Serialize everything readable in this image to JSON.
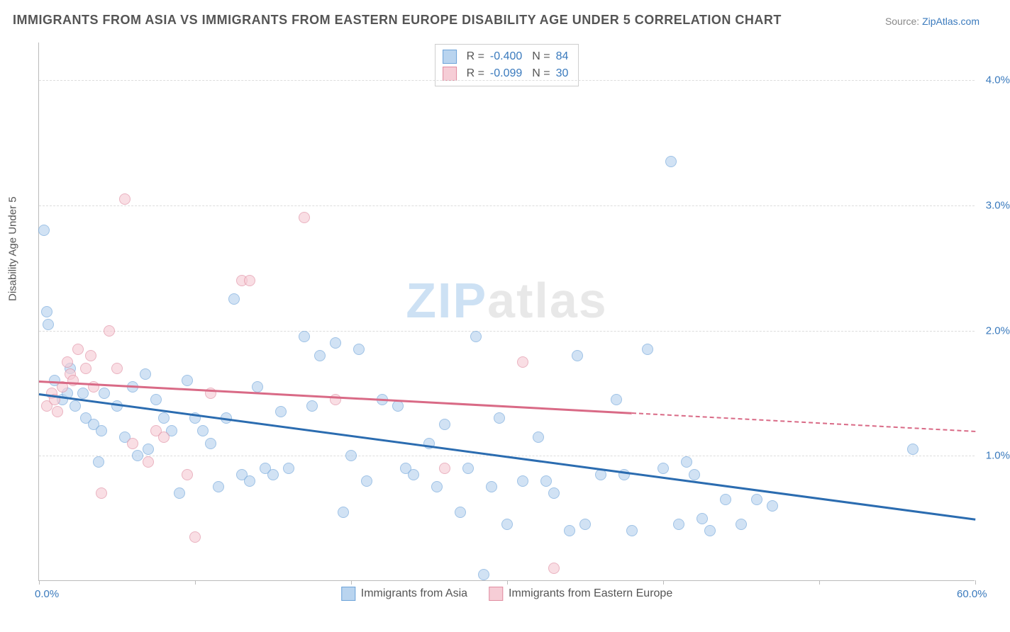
{
  "title": "IMMIGRANTS FROM ASIA VS IMMIGRANTS FROM EASTERN EUROPE DISABILITY AGE UNDER 5 CORRELATION CHART",
  "source_label": "Source:",
  "source_name": "ZipAtlas.com",
  "watermark": {
    "part1": "ZIP",
    "part2": "atlas"
  },
  "chart": {
    "type": "scatter",
    "xlim": [
      0,
      60
    ],
    "ylim": [
      0,
      4.3
    ],
    "y_gridlines": [
      1.0,
      2.0,
      3.0,
      4.0
    ],
    "ytick_labels": [
      "1.0%",
      "2.0%",
      "3.0%",
      "4.0%"
    ],
    "xtick_positions": [
      0,
      10,
      20,
      30,
      40,
      50,
      60
    ],
    "xtick_show_labels": {
      "0": "0.0%",
      "60": "60.0%"
    },
    "ylabel": "Disability Age Under 5",
    "background_color": "#ffffff",
    "grid_color": "#dddddd",
    "axis_color": "#bbbbbb",
    "tick_label_color": "#3a7abd",
    "point_radius": 8,
    "point_opacity": 0.65,
    "series": [
      {
        "key": "asia",
        "label": "Immigrants from Asia",
        "color_fill": "#b9d4ef",
        "color_stroke": "#6da3d9",
        "r_label": "R =",
        "r_value": "-0.400",
        "n_label": "N =",
        "n_value": "84",
        "trend": {
          "x0": 0,
          "y0": 1.5,
          "x1": 60,
          "y1": 0.5,
          "solid_until_x": 60,
          "color": "#2b6cb0"
        },
        "points": [
          [
            0.3,
            2.8
          ],
          [
            0.5,
            2.15
          ],
          [
            0.6,
            2.05
          ],
          [
            1,
            1.6
          ],
          [
            1.5,
            1.45
          ],
          [
            1.8,
            1.5
          ],
          [
            2,
            1.7
          ],
          [
            2.3,
            1.4
          ],
          [
            2.8,
            1.5
          ],
          [
            3,
            1.3
          ],
          [
            3.5,
            1.25
          ],
          [
            3.8,
            0.95
          ],
          [
            4,
            1.2
          ],
          [
            4.2,
            1.5
          ],
          [
            5,
            1.4
          ],
          [
            5.5,
            1.15
          ],
          [
            6,
            1.55
          ],
          [
            6.3,
            1.0
          ],
          [
            6.8,
            1.65
          ],
          [
            7,
            1.05
          ],
          [
            7.5,
            1.45
          ],
          [
            8,
            1.3
          ],
          [
            8.5,
            1.2
          ],
          [
            9,
            0.7
          ],
          [
            9.5,
            1.6
          ],
          [
            10,
            1.3
          ],
          [
            10.5,
            1.2
          ],
          [
            11,
            1.1
          ],
          [
            11.5,
            0.75
          ],
          [
            12,
            1.3
          ],
          [
            12.5,
            2.25
          ],
          [
            13,
            0.85
          ],
          [
            13.5,
            0.8
          ],
          [
            14,
            1.55
          ],
          [
            14.5,
            0.9
          ],
          [
            15,
            0.85
          ],
          [
            15.5,
            1.35
          ],
          [
            16,
            0.9
          ],
          [
            17,
            1.95
          ],
          [
            17.5,
            1.4
          ],
          [
            18,
            1.8
          ],
          [
            19,
            1.9
          ],
          [
            19.5,
            0.55
          ],
          [
            20,
            1.0
          ],
          [
            20.5,
            1.85
          ],
          [
            21,
            0.8
          ],
          [
            22,
            1.45
          ],
          [
            23,
            1.4
          ],
          [
            23.5,
            0.9
          ],
          [
            24,
            0.85
          ],
          [
            25,
            1.1
          ],
          [
            25.5,
            0.75
          ],
          [
            26,
            1.25
          ],
          [
            27,
            0.55
          ],
          [
            27.5,
            0.9
          ],
          [
            28,
            1.95
          ],
          [
            28.5,
            0.05
          ],
          [
            29,
            0.75
          ],
          [
            29.5,
            1.3
          ],
          [
            30,
            0.45
          ],
          [
            31,
            0.8
          ],
          [
            32,
            1.15
          ],
          [
            32.5,
            0.8
          ],
          [
            33,
            0.7
          ],
          [
            34,
            0.4
          ],
          [
            34.5,
            1.8
          ],
          [
            35,
            0.45
          ],
          [
            36,
            0.85
          ],
          [
            37,
            1.45
          ],
          [
            37.5,
            0.85
          ],
          [
            38,
            0.4
          ],
          [
            39,
            1.85
          ],
          [
            40,
            0.9
          ],
          [
            40.5,
            3.35
          ],
          [
            41,
            0.45
          ],
          [
            41.5,
            0.95
          ],
          [
            42,
            0.85
          ],
          [
            42.5,
            0.5
          ],
          [
            43,
            0.4
          ],
          [
            44,
            0.65
          ],
          [
            45,
            0.45
          ],
          [
            46,
            0.65
          ],
          [
            47,
            0.6
          ],
          [
            56,
            1.05
          ]
        ]
      },
      {
        "key": "eeur",
        "label": "Immigrants from Eastern Europe",
        "color_fill": "#f6cdd6",
        "color_stroke": "#e08ca0",
        "r_label": "R =",
        "r_value": "-0.099",
        "n_label": "N =",
        "n_value": "30",
        "trend": {
          "x0": 0,
          "y0": 1.6,
          "x1": 60,
          "y1": 1.2,
          "solid_until_x": 38,
          "color": "#d96a86"
        },
        "points": [
          [
            0.5,
            1.4
          ],
          [
            0.8,
            1.5
          ],
          [
            1,
            1.45
          ],
          [
            1.2,
            1.35
          ],
          [
            1.5,
            1.55
          ],
          [
            1.8,
            1.75
          ],
          [
            2,
            1.65
          ],
          [
            2.2,
            1.6
          ],
          [
            2.5,
            1.85
          ],
          [
            3,
            1.7
          ],
          [
            3.3,
            1.8
          ],
          [
            3.5,
            1.55
          ],
          [
            4,
            0.7
          ],
          [
            4.5,
            2.0
          ],
          [
            5,
            1.7
          ],
          [
            5.5,
            3.05
          ],
          [
            6,
            1.1
          ],
          [
            7,
            0.95
          ],
          [
            7.5,
            1.2
          ],
          [
            8,
            1.15
          ],
          [
            9.5,
            0.85
          ],
          [
            10,
            0.35
          ],
          [
            11,
            1.5
          ],
          [
            13,
            2.4
          ],
          [
            13.5,
            2.4
          ],
          [
            17,
            2.9
          ],
          [
            19,
            1.45
          ],
          [
            26,
            0.9
          ],
          [
            31,
            1.75
          ],
          [
            33,
            0.1
          ]
        ]
      }
    ]
  }
}
